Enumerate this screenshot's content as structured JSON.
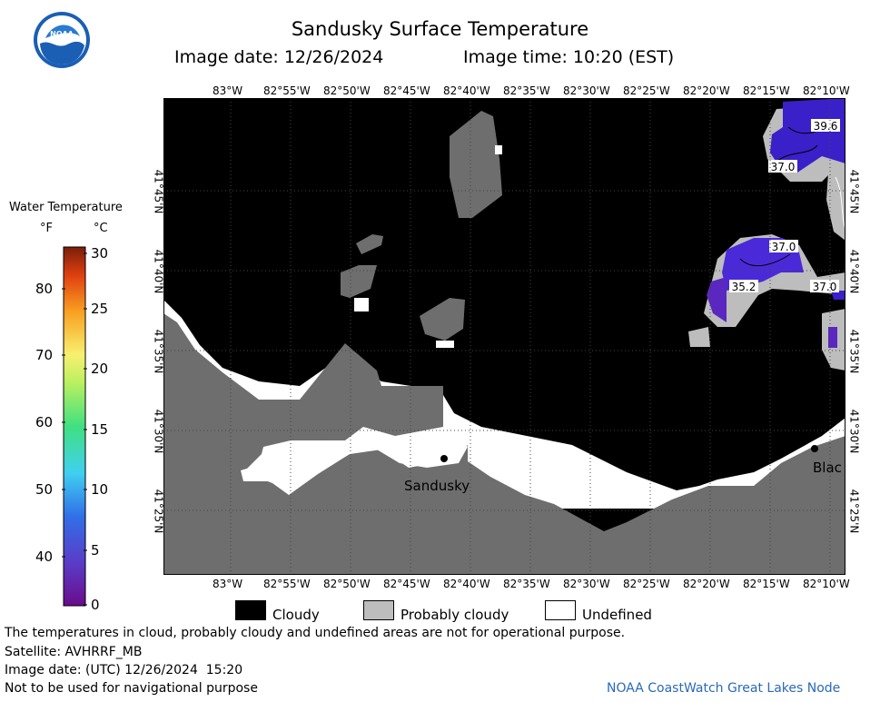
{
  "header": {
    "title": "Sandusky Surface Temperature",
    "image_date": "Image date: 12/26/2024",
    "image_time": "Image time: 10:20 (EST)",
    "logo_text": "NOAA"
  },
  "map": {
    "lon_labels": [
      "83°W",
      "82°55'W",
      "82°50'W",
      "82°45'W",
      "82°40'W",
      "82°35'W",
      "82°30'W",
      "82°25'W",
      "82°20'W",
      "82°15'W",
      "82°10'W"
    ],
    "lat_labels": [
      "41°45'N",
      "41°40'N",
      "41°35'N",
      "41°30'N",
      "41°25'N"
    ],
    "place_labels": {
      "sandusky": "Sandusky",
      "blac": "Blac"
    },
    "contour_labels": [
      "39.6",
      "37.0",
      "37.0",
      "35.2",
      "37.0"
    ],
    "colors": {
      "cloudy": "#000000",
      "land": "#6e6e6e",
      "probably_cloudy": "#bdbdbd",
      "undefined": "#ffffff",
      "cold_water": "#3a20c8"
    }
  },
  "color_scale": {
    "title": "Water Temperature",
    "unit_f": "°F",
    "unit_c": "°C",
    "f_labels": [
      "80",
      "70",
      "60",
      "50",
      "40"
    ],
    "c_labels": [
      "30",
      "25",
      "20",
      "15",
      "10",
      "5",
      "0"
    ]
  },
  "legend": {
    "cloudy": "Cloudy",
    "probably_cloudy": "Probably cloudy",
    "undefined": "Undefined"
  },
  "footer": {
    "disclaimer": "The temperatures in cloud, probably cloudy and undefined areas are not for operational purpose.",
    "satellite": "Satellite: AVHRRF_MB",
    "utc_date": "Image date: (UTC) 12/26/2024  15:20",
    "nav_warning": "Not to be used for navigational purpose",
    "credit": "NOAA CoastWatch Great Lakes Node"
  }
}
